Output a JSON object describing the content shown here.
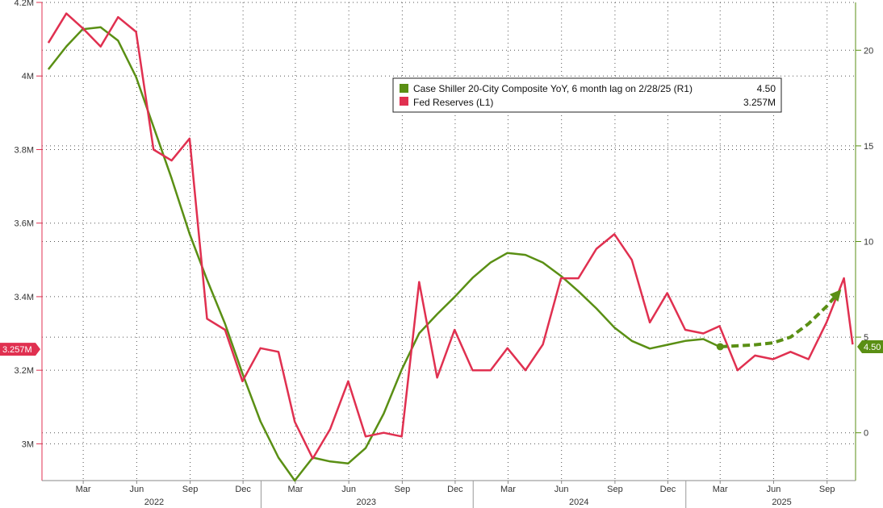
{
  "chart_data": {
    "type": "line",
    "title": "",
    "xlabel": "",
    "ylabel_left": "",
    "ylabel_right": "",
    "x_range": [
      "2021-12-20",
      "2025-10-20"
    ],
    "left_axis": {
      "min": 2.9,
      "max": 4.2,
      "ticks": [
        3.0,
        3.2,
        3.4,
        3.6,
        3.8,
        4.0,
        4.2
      ],
      "tick_labels": [
        "3M",
        "3.2M",
        "3.4M",
        "3.6M",
        "3.8M",
        "4M",
        "4.2M"
      ]
    },
    "right_axis": {
      "min": -2.5,
      "max": 22.5,
      "ticks": [
        0,
        5,
        10,
        15,
        20
      ],
      "tick_labels": [
        "0",
        "5",
        "10",
        "15",
        "20"
      ]
    },
    "month_ticks": [
      {
        "date": "2022-03-01",
        "label": "Mar"
      },
      {
        "date": "2022-06-01",
        "label": "Jun"
      },
      {
        "date": "2022-09-01",
        "label": "Sep"
      },
      {
        "date": "2022-12-01",
        "label": "Dec"
      },
      {
        "date": "2023-03-01",
        "label": "Mar"
      },
      {
        "date": "2023-06-01",
        "label": "Jun"
      },
      {
        "date": "2023-09-01",
        "label": "Sep"
      },
      {
        "date": "2023-12-01",
        "label": "Dec"
      },
      {
        "date": "2024-03-01",
        "label": "Mar"
      },
      {
        "date": "2024-06-01",
        "label": "Jun"
      },
      {
        "date": "2024-09-01",
        "label": "Sep"
      },
      {
        "date": "2024-12-01",
        "label": "Dec"
      },
      {
        "date": "2025-03-01",
        "label": "Mar"
      },
      {
        "date": "2025-06-01",
        "label": "Jun"
      },
      {
        "date": "2025-09-01",
        "label": "Sep"
      }
    ],
    "year_labels": [
      {
        "year": "2022",
        "center": "2022-07-01"
      },
      {
        "year": "2023",
        "center": "2023-07-01"
      },
      {
        "year": "2024",
        "center": "2024-07-01"
      },
      {
        "year": "2025",
        "center": "2025-06-15"
      }
    ],
    "year_dividers": [
      "2023-01-01",
      "2024-01-01",
      "2025-01-01"
    ],
    "grid": true,
    "legend_position": "top-center",
    "series": [
      {
        "name": "Case Shiller 20-City Composite YoY, 6 month lag on 2/28/25 (R1)",
        "last_label": "4.50",
        "axis": "right",
        "color": "#5a8f14",
        "x": [
          "2021-12-31",
          "2022-01-31",
          "2022-02-28",
          "2022-03-31",
          "2022-04-30",
          "2022-05-31",
          "2022-06-30",
          "2022-07-31",
          "2022-08-31",
          "2022-09-30",
          "2022-10-31",
          "2022-11-30",
          "2022-12-31",
          "2023-01-31",
          "2023-02-28",
          "2023-03-31",
          "2023-04-30",
          "2023-05-31",
          "2023-06-30",
          "2023-07-31",
          "2023-08-31",
          "2023-09-30",
          "2023-10-31",
          "2023-11-30",
          "2023-12-31",
          "2024-01-31",
          "2024-02-29",
          "2024-03-31",
          "2024-04-30",
          "2024-05-31",
          "2024-06-30",
          "2024-07-31",
          "2024-08-31",
          "2024-09-30",
          "2024-10-31",
          "2024-11-30",
          "2024-12-31",
          "2025-01-31",
          "2025-02-28"
        ],
        "y": [
          19.0,
          20.2,
          21.1,
          21.2,
          20.5,
          18.6,
          16.0,
          13.3,
          10.4,
          8.0,
          5.7,
          3.1,
          0.6,
          -1.3,
          -2.5,
          -1.3,
          -1.5,
          -1.6,
          -0.8,
          1.0,
          3.3,
          5.2,
          6.2,
          7.1,
          8.1,
          8.9,
          9.4,
          9.3,
          8.9,
          8.2,
          7.4,
          6.5,
          5.5,
          4.8,
          4.4,
          4.6,
          4.8,
          4.9,
          4.5
        ]
      },
      {
        "name": "Fed Reserves (L1)",
        "last_label": "3.257M",
        "axis": "left",
        "color": "#e03050",
        "x": [
          "2021-12-31",
          "2022-01-31",
          "2022-02-28",
          "2022-03-31",
          "2022-04-30",
          "2022-05-31",
          "2022-06-30",
          "2022-07-31",
          "2022-08-31",
          "2022-09-30",
          "2022-10-31",
          "2022-11-30",
          "2022-12-31",
          "2023-01-31",
          "2023-02-28",
          "2023-03-31",
          "2023-04-30",
          "2023-05-31",
          "2023-06-30",
          "2023-07-31",
          "2023-08-31",
          "2023-09-30",
          "2023-10-31",
          "2023-11-30",
          "2023-12-31",
          "2024-01-31",
          "2024-02-29",
          "2024-03-31",
          "2024-04-30",
          "2024-05-31",
          "2024-06-30",
          "2024-07-31",
          "2024-08-31",
          "2024-09-30",
          "2024-10-31",
          "2024-11-30",
          "2024-12-31",
          "2025-01-31",
          "2025-02-28",
          "2025-03-31",
          "2025-04-30",
          "2025-05-31",
          "2025-06-30",
          "2025-07-31",
          "2025-08-31",
          "2025-09-30",
          "2025-10-15"
        ],
        "y": [
          4.09,
          4.17,
          4.13,
          4.08,
          4.16,
          4.12,
          3.8,
          3.77,
          3.83,
          3.34,
          3.31,
          3.17,
          3.26,
          3.25,
          3.06,
          2.96,
          3.04,
          3.17,
          3.02,
          3.03,
          3.02,
          3.44,
          3.18,
          3.31,
          3.2,
          3.2,
          3.26,
          3.2,
          3.27,
          3.45,
          3.45,
          3.53,
          3.57,
          3.5,
          3.33,
          3.41,
          3.31,
          3.3,
          3.32,
          3.2,
          3.24,
          3.23,
          3.25,
          3.23,
          3.33,
          3.45,
          3.27
        ]
      }
    ],
    "projection": {
      "axis": "right",
      "color": "#5a8f14",
      "x": [
        "2025-03-01",
        "2025-04-30",
        "2025-05-31",
        "2025-06-30",
        "2025-07-31",
        "2025-08-31",
        "2025-09-20"
      ],
      "y": [
        4.5,
        4.6,
        4.7,
        5.0,
        5.7,
        6.6,
        7.3
      ]
    },
    "last_markers": {
      "left": {
        "value": 3.257,
        "label": "3.257M",
        "color": "#e03050"
      },
      "right": {
        "value": 4.5,
        "label": "4.50",
        "color": "#5a8f14"
      }
    }
  }
}
